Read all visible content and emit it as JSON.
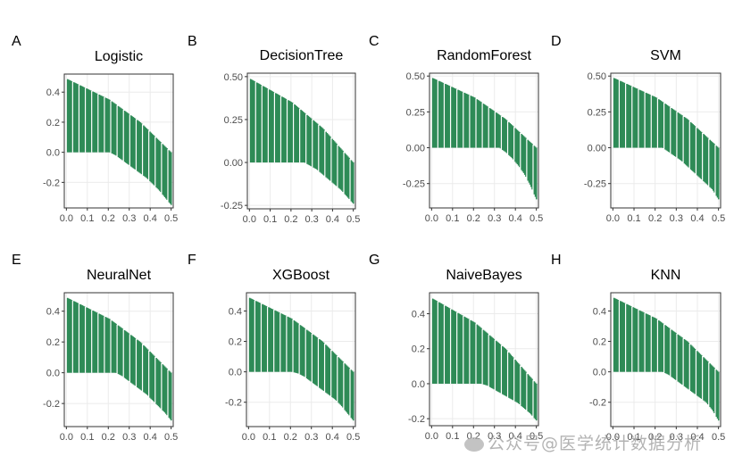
{
  "figure": {
    "bar_color": "#2E8B57",
    "watermark": "公众号@医学统计数据分析"
  },
  "chart_data": [
    {
      "tag": "A",
      "title": "Logistic",
      "type": "bar",
      "x_ticks": [
        "0.0",
        "0.1",
        "0.2",
        "0.3",
        "0.4",
        "0.5"
      ],
      "y_ticks": [
        "0.4",
        "0.2",
        "0.0",
        "-0.2"
      ],
      "y_tick_values": [
        0.4,
        0.2,
        0.0,
        -0.2
      ],
      "ylim": [
        -0.37,
        0.52
      ],
      "xlim": [
        -0.01,
        0.51
      ],
      "upper": [
        0.49,
        0.47,
        0.45,
        0.43,
        0.41,
        0.39,
        0.37,
        0.35,
        0.32,
        0.29,
        0.26,
        0.23,
        0.2,
        0.16,
        0.12,
        0.08,
        0.04,
        0.0
      ],
      "lower": [
        0.0,
        0.0,
        0.0,
        0.0,
        0.0,
        0.0,
        0.0,
        0.0,
        -0.02,
        -0.05,
        -0.08,
        -0.11,
        -0.14,
        -0.17,
        -0.21,
        -0.25,
        -0.3,
        -0.35
      ]
    },
    {
      "tag": "B",
      "title": "DecisionTree",
      "type": "bar",
      "x_ticks": [
        "0.0",
        "0.1",
        "0.2",
        "0.3",
        "0.4",
        "0.5"
      ],
      "y_ticks": [
        "0.50",
        "0.25",
        "0.00",
        "-0.25"
      ],
      "y_tick_values": [
        0.5,
        0.25,
        0.0,
        -0.25
      ],
      "ylim": [
        -0.27,
        0.52
      ],
      "xlim": [
        -0.01,
        0.51
      ],
      "upper": [
        0.49,
        0.47,
        0.45,
        0.43,
        0.41,
        0.39,
        0.37,
        0.35,
        0.32,
        0.29,
        0.26,
        0.23,
        0.2,
        0.16,
        0.12,
        0.08,
        0.04,
        0.0
      ],
      "lower": [
        0.0,
        0.0,
        0.0,
        0.0,
        0.0,
        0.0,
        0.0,
        0.0,
        0.0,
        0.0,
        -0.02,
        -0.04,
        -0.07,
        -0.1,
        -0.13,
        -0.16,
        -0.2,
        -0.24
      ]
    },
    {
      "tag": "C",
      "title": "RandomForest",
      "type": "bar",
      "x_ticks": [
        "0.0",
        "0.1",
        "0.2",
        "0.3",
        "0.4",
        "0.5"
      ],
      "y_ticks": [
        "0.50",
        "0.25",
        "0.00",
        "-0.25"
      ],
      "y_tick_values": [
        0.5,
        0.25,
        0.0,
        -0.25
      ],
      "ylim": [
        -0.42,
        0.52
      ],
      "xlim": [
        -0.01,
        0.51
      ],
      "upper": [
        0.49,
        0.47,
        0.45,
        0.43,
        0.41,
        0.39,
        0.37,
        0.35,
        0.32,
        0.29,
        0.26,
        0.23,
        0.2,
        0.16,
        0.12,
        0.08,
        0.04,
        0.0
      ],
      "lower": [
        0.0,
        0.0,
        0.0,
        0.0,
        0.0,
        0.0,
        0.0,
        0.0,
        0.0,
        0.0,
        0.0,
        0.0,
        -0.03,
        -0.07,
        -0.12,
        -0.18,
        -0.26,
        -0.36
      ]
    },
    {
      "tag": "D",
      "title": "SVM",
      "type": "bar",
      "x_ticks": [
        "0.0",
        "0.1",
        "0.2",
        "0.3",
        "0.4",
        "0.5"
      ],
      "y_ticks": [
        "0.50",
        "0.25",
        "0.00",
        "-0.25"
      ],
      "y_tick_values": [
        0.5,
        0.25,
        0.0,
        -0.25
      ],
      "ylim": [
        -0.42,
        0.52
      ],
      "xlim": [
        -0.01,
        0.51
      ],
      "upper": [
        0.49,
        0.47,
        0.45,
        0.43,
        0.41,
        0.39,
        0.37,
        0.35,
        0.32,
        0.29,
        0.26,
        0.23,
        0.2,
        0.16,
        0.12,
        0.08,
        0.04,
        0.0
      ],
      "lower": [
        0.0,
        0.0,
        0.0,
        0.0,
        0.0,
        0.0,
        0.0,
        0.0,
        0.0,
        -0.03,
        -0.06,
        -0.09,
        -0.13,
        -0.17,
        -0.21,
        -0.25,
        -0.29,
        -0.36
      ]
    },
    {
      "tag": "E",
      "title": "NeuralNet",
      "type": "bar",
      "x_ticks": [
        "0.0",
        "0.1",
        "0.2",
        "0.3",
        "0.4",
        "0.5"
      ],
      "y_ticks": [
        "0.4",
        "0.2",
        "0.0",
        "-0.2"
      ],
      "y_tick_values": [
        0.4,
        0.2,
        0.0,
        -0.2
      ],
      "ylim": [
        -0.35,
        0.52
      ],
      "xlim": [
        -0.01,
        0.51
      ],
      "upper": [
        0.49,
        0.47,
        0.45,
        0.43,
        0.41,
        0.39,
        0.37,
        0.35,
        0.32,
        0.29,
        0.26,
        0.23,
        0.2,
        0.16,
        0.12,
        0.08,
        0.04,
        0.0
      ],
      "lower": [
        0.0,
        0.0,
        0.0,
        0.0,
        0.0,
        0.0,
        0.0,
        0.0,
        0.0,
        -0.02,
        -0.05,
        -0.08,
        -0.11,
        -0.14,
        -0.18,
        -0.22,
        -0.26,
        -0.31
      ]
    },
    {
      "tag": "F",
      "title": "XGBoost",
      "type": "bar",
      "x_ticks": [
        "0.0",
        "0.1",
        "0.2",
        "0.3",
        "0.4",
        "0.5"
      ],
      "y_ticks": [
        "0.4",
        "0.2",
        "0.0",
        "-0.2"
      ],
      "y_tick_values": [
        0.4,
        0.2,
        0.0,
        -0.2
      ],
      "ylim": [
        -0.36,
        0.52
      ],
      "xlim": [
        -0.01,
        0.51
      ],
      "upper": [
        0.49,
        0.47,
        0.45,
        0.43,
        0.41,
        0.39,
        0.37,
        0.35,
        0.32,
        0.29,
        0.26,
        0.23,
        0.2,
        0.16,
        0.12,
        0.08,
        0.04,
        0.0
      ],
      "lower": [
        0.0,
        0.0,
        0.0,
        0.0,
        0.0,
        0.0,
        0.0,
        0.0,
        -0.01,
        -0.03,
        -0.06,
        -0.09,
        -0.12,
        -0.15,
        -0.18,
        -0.22,
        -0.27,
        -0.32
      ]
    },
    {
      "tag": "G",
      "title": "NaiveBayes",
      "type": "bar",
      "x_ticks": [
        "0.0",
        "0.1",
        "0.2",
        "0.3",
        "0.4",
        "0.5"
      ],
      "y_ticks": [
        "0.4",
        "0.2",
        "0.0",
        "-0.2"
      ],
      "y_tick_values": [
        0.4,
        0.2,
        0.0,
        -0.2
      ],
      "ylim": [
        -0.24,
        0.52
      ],
      "xlim": [
        -0.01,
        0.51
      ],
      "upper": [
        0.49,
        0.47,
        0.45,
        0.43,
        0.41,
        0.39,
        0.37,
        0.35,
        0.32,
        0.29,
        0.26,
        0.23,
        0.2,
        0.16,
        0.12,
        0.08,
        0.04,
        0.0
      ],
      "lower": [
        0.0,
        0.0,
        0.0,
        0.0,
        0.0,
        0.0,
        0.0,
        0.0,
        0.0,
        -0.01,
        -0.03,
        -0.05,
        -0.07,
        -0.09,
        -0.11,
        -0.14,
        -0.17,
        -0.21
      ]
    },
    {
      "tag": "H",
      "title": "KNN",
      "type": "bar",
      "x_ticks": [
        "0.0",
        "0.1",
        "0.2",
        "0.3",
        "0.4",
        "0.5"
      ],
      "y_ticks": [
        "0.4",
        "0.2",
        "0.0",
        "-0.2"
      ],
      "y_tick_values": [
        0.4,
        0.2,
        0.0,
        -0.2
      ],
      "ylim": [
        -0.36,
        0.52
      ],
      "xlim": [
        -0.01,
        0.51
      ],
      "upper": [
        0.49,
        0.47,
        0.45,
        0.43,
        0.41,
        0.39,
        0.37,
        0.35,
        0.32,
        0.29,
        0.26,
        0.23,
        0.2,
        0.16,
        0.12,
        0.08,
        0.04,
        0.0
      ],
      "lower": [
        0.0,
        0.0,
        0.0,
        0.0,
        0.0,
        0.0,
        0.0,
        0.0,
        0.0,
        -0.02,
        -0.05,
        -0.08,
        -0.11,
        -0.14,
        -0.17,
        -0.2,
        -0.25,
        -0.32
      ]
    }
  ]
}
